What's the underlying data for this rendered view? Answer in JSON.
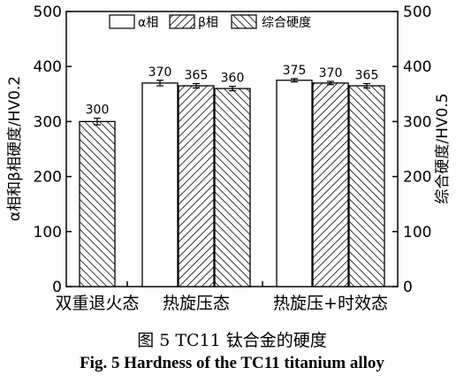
{
  "chart_data": {
    "type": "bar",
    "categories": [
      "双重退火态",
      "热旋压态",
      "热旋压+时效态"
    ],
    "series": [
      {
        "name": "α相",
        "values": [
          null,
          370,
          375
        ],
        "errors": [
          null,
          5,
          3
        ],
        "pattern": "white"
      },
      {
        "name": "β相",
        "values": [
          null,
          365,
          370
        ],
        "errors": [
          null,
          4,
          3
        ],
        "pattern": "forward-hatch"
      },
      {
        "name": "综合硬度",
        "values": [
          300,
          360,
          365
        ],
        "errors": [
          6,
          4,
          4
        ],
        "pattern": "back-hatch"
      }
    ],
    "value_labels": [
      [
        "",
        "370",
        "375"
      ],
      [
        "",
        "365",
        "370"
      ],
      [
        "300",
        "360",
        "365"
      ]
    ],
    "ylabel_left": "α相和β相硬度/HV0.2",
    "ylabel_right": "综合硬度/HV0.5",
    "ylim": [
      0,
      500
    ],
    "yticks": [
      "0",
      "100",
      "200",
      "300",
      "400",
      "500"
    ],
    "grid": false,
    "legend_position": "top-right"
  },
  "caption": {
    "cn": "图 5    TC11 钛合金的硬度",
    "en": "Fig. 5    Hardness of the TC11 titanium alloy"
  }
}
